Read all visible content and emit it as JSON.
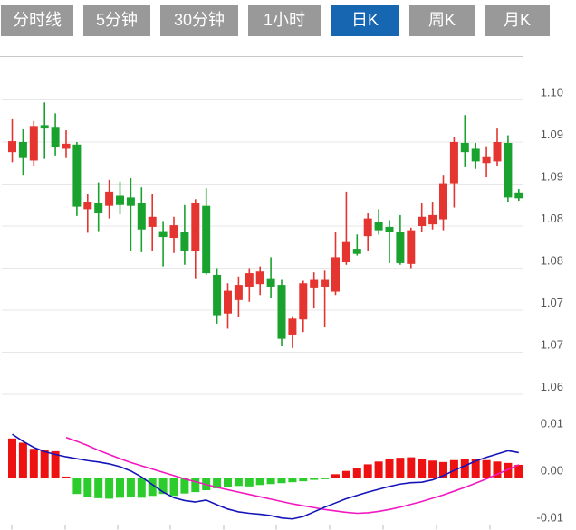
{
  "tabbar": {
    "tabs": [
      {
        "label": "分时线",
        "active": false
      },
      {
        "label": "5分钟",
        "active": false
      },
      {
        "label": "30分钟",
        "active": false
      },
      {
        "label": "1小时",
        "active": false
      },
      {
        "label": "日K",
        "active": true
      },
      {
        "label": "周K",
        "active": false
      },
      {
        "label": "月K",
        "active": false
      }
    ]
  },
  "colors": {
    "tab_inactive_bg": "#999999",
    "tab_active_bg": "#1666b2",
    "tab_text": "#ffffff",
    "candle_up": "#e53530",
    "candle_down": "#1aa22e",
    "hist_up": "#ee1111",
    "hist_down": "#2bcc2b",
    "dif_line": "#1414b8",
    "dea_line": "#f218c0",
    "gridline": "#e7e7e7",
    "panel_border": "#c9c9c9",
    "axis_label": "#565656"
  },
  "chart_data": {
    "type": "candlestick",
    "legend_position": "none",
    "grid": true,
    "price_panel": {
      "y_axis_labels": [
        "1.10",
        "1.09",
        "1.09",
        "1.08",
        "1.08",
        "1.07",
        "1.07",
        "1.06"
      ],
      "y_axis_values": [
        1.1,
        1.095,
        1.09,
        1.085,
        1.08,
        1.075,
        1.07,
        1.065
      ],
      "candles": [
        {
          "o": 1.0938,
          "h": 1.0977,
          "l": 1.0926,
          "c": 1.0951
        },
        {
          "o": 1.095,
          "h": 1.0965,
          "l": 1.091,
          "c": 1.0931
        },
        {
          "o": 1.0928,
          "h": 1.0975,
          "l": 1.0922,
          "c": 1.0969
        },
        {
          "o": 1.097,
          "h": 1.0997,
          "l": 1.093,
          "c": 1.0966
        },
        {
          "o": 1.0968,
          "h": 1.0984,
          "l": 1.0934,
          "c": 1.0944
        },
        {
          "o": 1.0942,
          "h": 1.0964,
          "l": 1.0931,
          "c": 1.0948
        },
        {
          "o": 1.0947,
          "h": 1.095,
          "l": 1.0862,
          "c": 1.0873
        },
        {
          "o": 1.087,
          "h": 1.0888,
          "l": 1.0842,
          "c": 1.0879
        },
        {
          "o": 1.0877,
          "h": 1.0902,
          "l": 1.0844,
          "c": 1.0866
        },
        {
          "o": 1.0874,
          "h": 1.0905,
          "l": 1.0859,
          "c": 1.0891
        },
        {
          "o": 1.0886,
          "h": 1.0903,
          "l": 1.0864,
          "c": 1.0875
        },
        {
          "o": 1.0884,
          "h": 1.0907,
          "l": 1.082,
          "c": 1.0874
        },
        {
          "o": 1.0877,
          "h": 1.0896,
          "l": 1.0819,
          "c": 1.0846
        },
        {
          "o": 1.0849,
          "h": 1.0888,
          "l": 1.082,
          "c": 1.0861
        },
        {
          "o": 1.0844,
          "h": 1.0856,
          "l": 1.0802,
          "c": 1.0837
        },
        {
          "o": 1.0836,
          "h": 1.0861,
          "l": 1.0818,
          "c": 1.0851
        },
        {
          "o": 1.0843,
          "h": 1.0875,
          "l": 1.0804,
          "c": 1.0821
        },
        {
          "o": 1.082,
          "h": 1.0882,
          "l": 1.0788,
          "c": 1.0877
        },
        {
          "o": 1.0874,
          "h": 1.0895,
          "l": 1.0792,
          "c": 1.0794
        },
        {
          "o": 1.0792,
          "h": 1.08,
          "l": 1.0734,
          "c": 1.0744
        },
        {
          "o": 1.0746,
          "h": 1.0782,
          "l": 1.0728,
          "c": 1.0773
        },
        {
          "o": 1.0762,
          "h": 1.079,
          "l": 1.0742,
          "c": 1.078
        },
        {
          "o": 1.0778,
          "h": 1.08,
          "l": 1.076,
          "c": 1.0794
        },
        {
          "o": 1.0781,
          "h": 1.0802,
          "l": 1.0768,
          "c": 1.0796
        },
        {
          "o": 1.0788,
          "h": 1.0813,
          "l": 1.0764,
          "c": 1.0778
        },
        {
          "o": 1.078,
          "h": 1.0786,
          "l": 1.0707,
          "c": 1.0716
        },
        {
          "o": 1.0721,
          "h": 1.0743,
          "l": 1.0705,
          "c": 1.074
        },
        {
          "o": 1.0739,
          "h": 1.0785,
          "l": 1.0724,
          "c": 1.0782
        },
        {
          "o": 1.0777,
          "h": 1.0795,
          "l": 1.0752,
          "c": 1.0786
        },
        {
          "o": 1.0778,
          "h": 1.0797,
          "l": 1.073,
          "c": 1.0786
        },
        {
          "o": 1.0772,
          "h": 1.0843,
          "l": 1.0768,
          "c": 1.0813
        },
        {
          "o": 1.0807,
          "h": 1.0891,
          "l": 1.0804,
          "c": 1.0831
        },
        {
          "o": 1.0823,
          "h": 1.084,
          "l": 1.0815,
          "c": 1.0817
        },
        {
          "o": 1.0838,
          "h": 1.0865,
          "l": 1.082,
          "c": 1.0859
        },
        {
          "o": 1.0855,
          "h": 1.087,
          "l": 1.084,
          "c": 1.0845
        },
        {
          "o": 1.0849,
          "h": 1.0857,
          "l": 1.0806,
          "c": 1.0843
        },
        {
          "o": 1.0843,
          "h": 1.0863,
          "l": 1.0804,
          "c": 1.0806
        },
        {
          "o": 1.0805,
          "h": 1.0848,
          "l": 1.08,
          "c": 1.0845
        },
        {
          "o": 1.085,
          "h": 1.0878,
          "l": 1.0843,
          "c": 1.0861
        },
        {
          "o": 1.0852,
          "h": 1.0879,
          "l": 1.0846,
          "c": 1.0863
        },
        {
          "o": 1.0858,
          "h": 1.091,
          "l": 1.0845,
          "c": 1.0901
        },
        {
          "o": 1.0901,
          "h": 1.0956,
          "l": 1.0872,
          "c": 1.095
        },
        {
          "o": 1.0949,
          "h": 1.0982,
          "l": 1.092,
          "c": 1.0938
        },
        {
          "o": 1.0942,
          "h": 1.0949,
          "l": 1.0918,
          "c": 1.0927
        },
        {
          "o": 1.0925,
          "h": 1.0945,
          "l": 1.0908,
          "c": 1.0932
        },
        {
          "o": 1.0927,
          "h": 1.0966,
          "l": 1.0922,
          "c": 1.095
        },
        {
          "o": 1.0949,
          "h": 1.0958,
          "l": 1.0879,
          "c": 1.0884
        },
        {
          "o": 1.089,
          "h": 1.0894,
          "l": 1.088,
          "c": 1.0883
        }
      ]
    },
    "macd_panel": {
      "y_axis_labels": [
        "0.01",
        "0.00",
        "-0.01"
      ],
      "y_axis_values": [
        0.01,
        0,
        -0.01
      ],
      "histogram": [
        0.0084,
        0.0075,
        0.0062,
        0.006,
        0.0057,
        0.0003,
        -0.0034,
        -0.004,
        -0.0043,
        -0.0044,
        -0.0042,
        -0.004,
        -0.0042,
        -0.0038,
        -0.0034,
        -0.0038,
        -0.0033,
        -0.003,
        -0.0026,
        -0.0022,
        -0.0019,
        -0.0017,
        -0.0018,
        -0.0015,
        -0.0013,
        -0.0011,
        -0.0009,
        -0.0007,
        -0.0004,
        -0.0002,
        0.0008,
        0.0015,
        0.0022,
        0.0029,
        0.0035,
        0.004,
        0.0043,
        0.0044,
        0.004,
        0.0037,
        0.0034,
        0.0038,
        0.0041,
        0.004,
        0.0038,
        0.0035,
        0.0032,
        0.0028
      ],
      "dif": [
        0.0093,
        0.0078,
        0.0065,
        0.0056,
        0.005,
        0.0045,
        0.0041,
        0.0037,
        0.0034,
        0.003,
        0.0024,
        0.0015,
        0.0002,
        -0.0014,
        -0.003,
        -0.0042,
        -0.0048,
        -0.0051,
        -0.0047,
        -0.0057,
        -0.0066,
        -0.0072,
        -0.0075,
        -0.0077,
        -0.008,
        -0.0085,
        -0.0087,
        -0.0082,
        -0.0072,
        -0.0062,
        -0.0053,
        -0.0044,
        -0.0037,
        -0.003,
        -0.0024,
        -0.0018,
        -0.0013,
        -0.001,
        -0.0009,
        -0.0004,
        0.0005,
        0.0016,
        0.0026,
        0.0036,
        0.0044,
        0.0051,
        0.0058,
        0.0054
      ],
      "dea": [
        null,
        null,
        null,
        null,
        null,
        0.0086,
        0.0078,
        0.0069,
        0.0059,
        0.005,
        0.0041,
        0.0033,
        0.0026,
        0.0019,
        0.0012,
        0.0005,
        -0.0002,
        -0.0008,
        -0.0014,
        -0.002,
        -0.0025,
        -0.003,
        -0.0035,
        -0.004,
        -0.0045,
        -0.005,
        -0.0055,
        -0.0059,
        -0.0063,
        -0.0067,
        -0.007,
        -0.0073,
        -0.0075,
        -0.0074,
        -0.0071,
        -0.0067,
        -0.0062,
        -0.0056,
        -0.005,
        -0.0043,
        -0.0036,
        -0.0028,
        -0.002,
        -0.0011,
        -0.0002,
        0.0008,
        0.0018,
        0.0028
      ]
    }
  }
}
